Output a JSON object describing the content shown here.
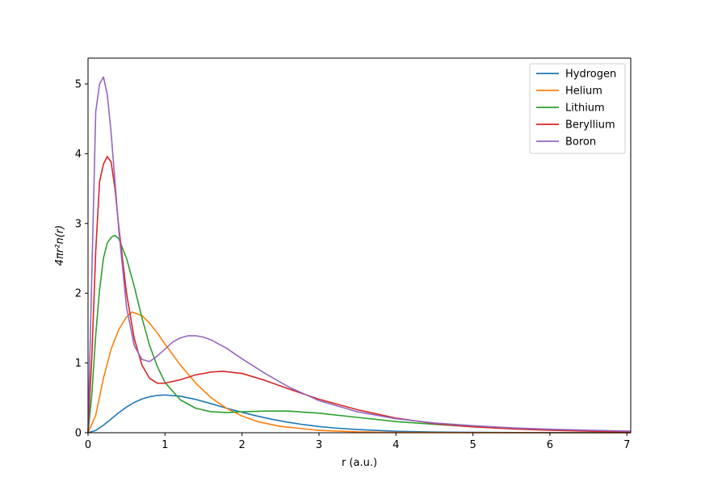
{
  "chart_data": {
    "type": "line",
    "xlabel": "r (a.u.)",
    "ylabel": "4πr²n(r)",
    "xlim": [
      0,
      7.05
    ],
    "ylim": [
      0,
      5.37
    ],
    "xticks": [
      0,
      1,
      2,
      3,
      4,
      5,
      6,
      7
    ],
    "yticks": [
      0,
      1,
      2,
      3,
      4,
      5
    ],
    "legend_position": "top-right",
    "grid": false,
    "series": [
      {
        "name": "Hydrogen",
        "color": "#1f77b4",
        "x": [
          0,
          0.1,
          0.2,
          0.3,
          0.4,
          0.5,
          0.6,
          0.7,
          0.8,
          0.9,
          1.0,
          1.2,
          1.4,
          1.6,
          1.8,
          2.0,
          2.2,
          2.4,
          2.6,
          2.8,
          3.0,
          3.2,
          3.5,
          4.0,
          4.5,
          5.0,
          5.5,
          6.0,
          6.5,
          7.05
        ],
        "y": [
          0,
          0.033,
          0.107,
          0.197,
          0.288,
          0.368,
          0.434,
          0.483,
          0.516,
          0.535,
          0.541,
          0.523,
          0.477,
          0.416,
          0.352,
          0.293,
          0.238,
          0.19,
          0.15,
          0.116,
          0.089,
          0.068,
          0.045,
          0.021,
          0.01,
          0.005,
          0.002,
          0.001,
          0.0005,
          0.0002
        ]
      },
      {
        "name": "Helium",
        "color": "#ff7f0e",
        "x": [
          0,
          0.1,
          0.2,
          0.3,
          0.4,
          0.5,
          0.57,
          0.7,
          0.8,
          0.9,
          1.0,
          1.2,
          1.4,
          1.6,
          1.8,
          2.0,
          2.2,
          2.5,
          3.0,
          3.5,
          4.0,
          5.0,
          6.0,
          7.05
        ],
        "y": [
          0,
          0.25,
          0.78,
          1.2,
          1.48,
          1.66,
          1.73,
          1.68,
          1.57,
          1.43,
          1.27,
          0.97,
          0.71,
          0.5,
          0.35,
          0.24,
          0.16,
          0.09,
          0.034,
          0.012,
          0.004,
          0.0005,
          0.0001,
          0
        ]
      },
      {
        "name": "Lithium",
        "color": "#2ca02c",
        "x": [
          0,
          0.05,
          0.1,
          0.15,
          0.2,
          0.25,
          0.3,
          0.35,
          0.4,
          0.5,
          0.6,
          0.7,
          0.8,
          0.9,
          1.0,
          1.2,
          1.4,
          1.6,
          1.8,
          2.0,
          2.3,
          2.6,
          3.0,
          3.5,
          4.0,
          4.5,
          5.0,
          5.5,
          6.0,
          6.5,
          7.05
        ],
        "y": [
          0,
          0.55,
          1.4,
          2.05,
          2.5,
          2.72,
          2.8,
          2.83,
          2.78,
          2.5,
          2.1,
          1.65,
          1.25,
          0.95,
          0.72,
          0.47,
          0.35,
          0.3,
          0.29,
          0.3,
          0.31,
          0.31,
          0.28,
          0.22,
          0.16,
          0.12,
          0.085,
          0.06,
          0.04,
          0.028,
          0.018
        ]
      },
      {
        "name": "Beryllium",
        "color": "#d62728",
        "x": [
          0,
          0.05,
          0.1,
          0.15,
          0.2,
          0.25,
          0.3,
          0.35,
          0.4,
          0.5,
          0.6,
          0.7,
          0.8,
          0.9,
          1.0,
          1.2,
          1.4,
          1.6,
          1.75,
          2.0,
          2.3,
          2.6,
          3.0,
          3.5,
          4.0,
          4.5,
          5.0,
          5.5,
          6.0,
          6.5,
          7.05
        ],
        "y": [
          0,
          1.1,
          2.6,
          3.6,
          3.85,
          3.96,
          3.88,
          3.5,
          2.95,
          2.0,
          1.35,
          0.97,
          0.78,
          0.71,
          0.71,
          0.76,
          0.83,
          0.87,
          0.88,
          0.85,
          0.75,
          0.63,
          0.48,
          0.33,
          0.21,
          0.13,
          0.085,
          0.055,
          0.035,
          0.022,
          0.012
        ]
      },
      {
        "name": "Boron",
        "color": "#9467bd",
        "x": [
          0,
          0.05,
          0.1,
          0.15,
          0.2,
          0.25,
          0.3,
          0.35,
          0.4,
          0.5,
          0.6,
          0.7,
          0.8,
          0.9,
          1.0,
          1.1,
          1.2,
          1.3,
          1.4,
          1.5,
          1.6,
          1.8,
          2.0,
          2.3,
          2.6,
          3.0,
          3.5,
          4.0,
          4.5,
          5.0,
          5.5,
          6.0,
          6.5,
          7.05
        ],
        "y": [
          0,
          2.3,
          4.6,
          5.0,
          5.1,
          4.85,
          4.3,
          3.6,
          2.9,
          1.8,
          1.25,
          1.05,
          1.02,
          1.1,
          1.2,
          1.3,
          1.36,
          1.39,
          1.39,
          1.37,
          1.33,
          1.21,
          1.06,
          0.85,
          0.66,
          0.46,
          0.3,
          0.2,
          0.14,
          0.1,
          0.07,
          0.05,
          0.035,
          0.022
        ]
      }
    ]
  }
}
